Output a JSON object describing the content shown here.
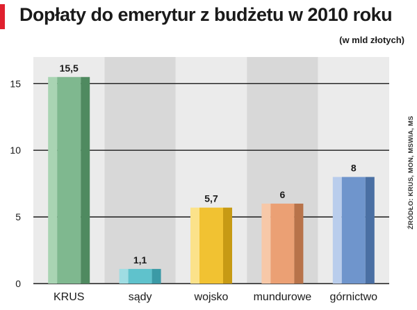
{
  "header": {
    "title": "Dopłaty do emerytur z budżetu w 2010 roku",
    "subtitle": "(w mld złotych)"
  },
  "source": "ŹRÓDŁO: KRUS, MON, MSWiA, MS",
  "colors": {
    "accent": "#e0202e",
    "panel": "#ebebeb",
    "panel_alt": "#d8d8d8",
    "grid": "#1a1a1a"
  },
  "chart_data": {
    "type": "bar",
    "title": "Dopłaty do emerytur z budżetu w 2010 roku",
    "subtitle": "(w mld złotych)",
    "xlabel": "",
    "ylabel": "",
    "ylim": [
      0,
      17
    ],
    "yticks": [
      0,
      5,
      10,
      15
    ],
    "grid": true,
    "legend": "none",
    "categories": [
      "KRUS",
      "sądy",
      "wojsko",
      "mundurowe",
      "górnictwo"
    ],
    "values": [
      15.5,
      1.1,
      5.7,
      6,
      8
    ],
    "value_labels": [
      "15,5",
      "1,1",
      "5,7",
      "6",
      "8"
    ],
    "bar_colors": [
      {
        "light": "#a9d4b3",
        "mid": "#7fb88f",
        "dark": "#4f8a60"
      },
      {
        "light": "#9fdde3",
        "mid": "#5fc2cc",
        "dark": "#3b9aa6"
      },
      {
        "light": "#fbe28a",
        "mid": "#f1c232",
        "dark": "#c79a14"
      },
      {
        "light": "#f7c8a8",
        "mid": "#eba074",
        "dark": "#b8734a"
      },
      {
        "light": "#b9cdec",
        "mid": "#6f95cc",
        "dark": "#4a6fa3"
      }
    ]
  }
}
